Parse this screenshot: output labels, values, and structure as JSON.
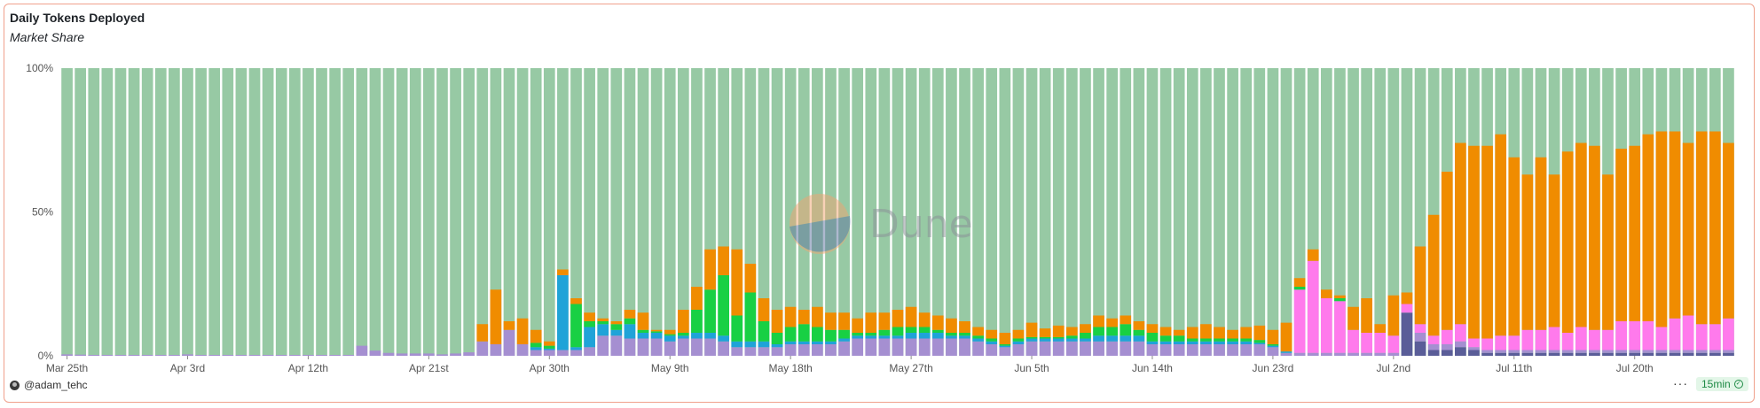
{
  "header": {
    "title": "Daily Tokens Deployed",
    "subtitle": "Market Share"
  },
  "footer": {
    "author": "@adam_tehc",
    "refresh": "15min",
    "more_icon": "ellipsis-icon",
    "refresh_icon": "check-circle-icon"
  },
  "watermark": {
    "text": "Dune"
  },
  "colors": {
    "background_series": "#97c9a4",
    "purple": "#a58fd1",
    "blue": "#1fa3d8",
    "green": "#18d044",
    "orange": "#f08c00",
    "pink": "#ff7aec",
    "navy": "#5a5d98"
  },
  "chart_data": {
    "type": "bar",
    "stacked": true,
    "normalized": true,
    "y_ticks": [
      "0%",
      "50%",
      "100%"
    ],
    "ylim": [
      0,
      100
    ],
    "grid": false,
    "legend": "none",
    "x_tick_labels": [
      {
        "label": "Mar 25th",
        "index": 0
      },
      {
        "label": "Apr 3rd",
        "index": 9
      },
      {
        "label": "Apr 12th",
        "index": 18
      },
      {
        "label": "Apr 21st",
        "index": 27
      },
      {
        "label": "Apr 30th",
        "index": 36
      },
      {
        "label": "May 9th",
        "index": 45
      },
      {
        "label": "May 18th",
        "index": 54
      },
      {
        "label": "May 27th",
        "index": 63
      },
      {
        "label": "Jun 5th",
        "index": 72
      },
      {
        "label": "Jun 14th",
        "index": 81
      },
      {
        "label": "Jun 23rd",
        "index": 90
      },
      {
        "label": "Jul 2nd",
        "index": 99
      },
      {
        "label": "Jul 11th",
        "index": 108
      },
      {
        "label": "Jul 20th",
        "index": 117
      }
    ],
    "stack_order": [
      "navy",
      "purple",
      "pink",
      "blue",
      "green",
      "orange"
    ],
    "days": [
      {
        "purple": 0.5
      },
      {
        "purple": 0.4
      },
      {
        "purple": 0.3
      },
      {
        "purple": 0.3
      },
      {
        "purple": 0.3
      },
      {
        "purple": 0.3
      },
      {
        "purple": 0.3
      },
      {
        "purple": 0.3
      },
      {
        "purple": 0.3
      },
      {
        "purple": 0.5
      },
      {
        "purple": 0.3
      },
      {
        "purple": 0.3
      },
      {
        "purple": 0.3
      },
      {
        "purple": 0.3
      },
      {
        "purple": 0.3
      },
      {
        "purple": 0.3
      },
      {
        "purple": 0.3
      },
      {
        "purple": 0.3
      },
      {
        "purple": 0.3
      },
      {
        "purple": 0.3
      },
      {
        "purple": 0.3
      },
      {
        "purple": 0.3
      },
      {
        "purple": 3.5
      },
      {
        "purple": 1.8
      },
      {
        "purple": 1.0
      },
      {
        "purple": 0.8
      },
      {
        "purple": 0.8
      },
      {
        "purple": 0.8
      },
      {
        "purple": 0.5
      },
      {
        "purple": 0.8
      },
      {
        "purple": 1.2
      },
      {
        "purple": 5,
        "orange": 6
      },
      {
        "purple": 4,
        "orange": 19
      },
      {
        "purple": 9,
        "orange": 3
      },
      {
        "purple": 4,
        "orange": 9
      },
      {
        "purple": 2,
        "blue": 1,
        "green": 1.5,
        "orange": 4.5
      },
      {
        "purple": 2,
        "blue": 0.5,
        "green": 1,
        "orange": 1.5
      },
      {
        "purple": 2,
        "blue": 26,
        "orange": 2
      },
      {
        "purple": 2,
        "blue": 1,
        "green": 15,
        "orange": 2
      },
      {
        "purple": 3,
        "blue": 7,
        "green": 2,
        "orange": 3
      },
      {
        "purple": 7,
        "blue": 4,
        "green": 1,
        "orange": 1
      },
      {
        "purple": 7,
        "blue": 2,
        "green": 2,
        "orange": 1
      },
      {
        "purple": 6,
        "blue": 5,
        "green": 2,
        "orange": 3
      },
      {
        "purple": 6,
        "blue": 2,
        "green": 1,
        "orange": 6
      },
      {
        "purple": 6,
        "blue": 2,
        "green": 0.5,
        "orange": 0.5
      },
      {
        "purple": 5,
        "blue": 2,
        "green": 0.5,
        "orange": 1.5
      },
      {
        "purple": 6,
        "blue": 1,
        "green": 1,
        "orange": 8
      },
      {
        "purple": 6,
        "blue": 2,
        "green": 8,
        "orange": 8
      },
      {
        "purple": 6,
        "blue": 2,
        "green": 15,
        "orange": 14
      },
      {
        "purple": 5,
        "blue": 2,
        "green": 21,
        "orange": 10
      },
      {
        "purple": 3,
        "blue": 2,
        "green": 9,
        "orange": 23
      },
      {
        "purple": 3,
        "blue": 2,
        "green": 17,
        "orange": 10
      },
      {
        "purple": 3,
        "blue": 2,
        "green": 7,
        "orange": 8
      },
      {
        "purple": 3,
        "blue": 1,
        "green": 4,
        "orange": 8
      },
      {
        "purple": 4,
        "blue": 1,
        "green": 5,
        "orange": 7
      },
      {
        "purple": 4,
        "blue": 1,
        "green": 6,
        "orange": 5
      },
      {
        "purple": 4,
        "blue": 1,
        "green": 5,
        "orange": 7
      },
      {
        "purple": 4,
        "blue": 1,
        "green": 4,
        "orange": 6
      },
      {
        "purple": 5,
        "blue": 1,
        "green": 3,
        "orange": 6
      },
      {
        "purple": 6,
        "blue": 1,
        "green": 1,
        "orange": 5
      },
      {
        "purple": 6,
        "blue": 1,
        "green": 1,
        "orange": 7
      },
      {
        "purple": 6,
        "blue": 1,
        "green": 2,
        "orange": 6
      },
      {
        "purple": 6,
        "blue": 1,
        "green": 3,
        "orange": 6
      },
      {
        "purple": 6,
        "blue": 2,
        "green": 2,
        "orange": 7
      },
      {
        "purple": 6,
        "blue": 2,
        "green": 2,
        "orange": 5
      },
      {
        "purple": 6,
        "blue": 2,
        "green": 1,
        "orange": 5
      },
      {
        "purple": 6,
        "blue": 1,
        "green": 1,
        "orange": 5
      },
      {
        "purple": 6,
        "blue": 1,
        "green": 1,
        "orange": 4
      },
      {
        "purple": 5,
        "blue": 1,
        "green": 1,
        "orange": 3
      },
      {
        "purple": 4,
        "blue": 1,
        "green": 1,
        "orange": 3
      },
      {
        "purple": 3,
        "blue": 0.5,
        "green": 0.5,
        "orange": 4
      },
      {
        "purple": 4,
        "blue": 1,
        "green": 1,
        "orange": 3
      },
      {
        "purple": 5,
        "blue": 1,
        "green": 0.5,
        "orange": 5
      },
      {
        "purple": 5,
        "blue": 1,
        "green": 0.5,
        "orange": 3
      },
      {
        "purple": 5,
        "blue": 1,
        "green": 0.5,
        "orange": 4
      },
      {
        "purple": 5,
        "blue": 1,
        "green": 1,
        "orange": 3
      },
      {
        "purple": 5,
        "blue": 1,
        "green": 2,
        "orange": 3
      },
      {
        "purple": 5,
        "blue": 2,
        "green": 3,
        "orange": 4
      },
      {
        "purple": 5,
        "blue": 2,
        "green": 3,
        "orange": 3
      },
      {
        "purple": 5,
        "blue": 2,
        "green": 4,
        "orange": 3
      },
      {
        "purple": 5,
        "blue": 2,
        "green": 2,
        "orange": 3
      },
      {
        "purple": 4,
        "blue": 1,
        "green": 3,
        "orange": 3
      },
      {
        "purple": 4,
        "blue": 1,
        "green": 2,
        "orange": 3
      },
      {
        "purple": 4,
        "blue": 1,
        "green": 2,
        "orange": 2
      },
      {
        "purple": 4,
        "blue": 1,
        "green": 1,
        "orange": 4
      },
      {
        "purple": 4,
        "blue": 1,
        "green": 1,
        "orange": 5
      },
      {
        "purple": 4,
        "blue": 1,
        "green": 1,
        "orange": 4
      },
      {
        "purple": 4,
        "blue": 1,
        "green": 1,
        "orange": 3
      },
      {
        "purple": 4,
        "blue": 1,
        "green": 1,
        "orange": 4
      },
      {
        "purple": 4,
        "blue": 0.5,
        "green": 1,
        "orange": 5
      },
      {
        "purple": 3,
        "blue": 0.5,
        "green": 0.5,
        "orange": 5
      },
      {
        "purple": 1,
        "blue": 0.5,
        "orange": 10
      },
      {
        "purple": 1,
        "pink": 22,
        "green": 1,
        "orange": 3
      },
      {
        "purple": 1,
        "pink": 32,
        "orange": 4
      },
      {
        "purple": 1,
        "pink": 19,
        "orange": 3
      },
      {
        "purple": 1,
        "pink": 18,
        "green": 1,
        "orange": 1
      },
      {
        "purple": 1,
        "pink": 8,
        "orange": 8
      },
      {
        "purple": 1,
        "pink": 7,
        "orange": 12
      },
      {
        "purple": 1,
        "pink": 7,
        "orange": 3
      },
      {
        "purple": 1,
        "pink": 6,
        "orange": 14
      },
      {
        "navy": 15,
        "pink": 3,
        "orange": 4
      },
      {
        "navy": 5,
        "purple": 3,
        "pink": 3,
        "orange": 27
      },
      {
        "navy": 2,
        "purple": 2,
        "pink": 3,
        "orange": 42
      },
      {
        "navy": 2,
        "purple": 2,
        "pink": 5,
        "orange": 55
      },
      {
        "navy": 3,
        "purple": 2,
        "pink": 6,
        "orange": 63
      },
      {
        "navy": 2,
        "purple": 1,
        "pink": 3,
        "orange": 67
      },
      {
        "navy": 1,
        "purple": 1,
        "pink": 4,
        "orange": 67
      },
      {
        "navy": 1,
        "purple": 1,
        "pink": 5,
        "orange": 70
      },
      {
        "navy": 1,
        "purple": 1,
        "pink": 5,
        "orange": 62
      },
      {
        "navy": 1,
        "purple": 1,
        "pink": 7,
        "orange": 54
      },
      {
        "navy": 1,
        "purple": 1,
        "pink": 7,
        "orange": 60
      },
      {
        "navy": 1,
        "purple": 1,
        "pink": 8,
        "orange": 53
      },
      {
        "navy": 1,
        "purple": 1,
        "pink": 6,
        "orange": 63
      },
      {
        "navy": 1,
        "purple": 1,
        "pink": 8,
        "orange": 64
      },
      {
        "navy": 1,
        "purple": 1,
        "pink": 7,
        "orange": 64
      },
      {
        "navy": 1,
        "purple": 1,
        "pink": 7,
        "orange": 54
      },
      {
        "navy": 1,
        "purple": 1,
        "pink": 10,
        "orange": 60
      },
      {
        "navy": 1,
        "purple": 1,
        "pink": 10,
        "orange": 61
      },
      {
        "navy": 1,
        "purple": 1,
        "pink": 10,
        "orange": 65
      },
      {
        "navy": 1,
        "purple": 1,
        "pink": 8,
        "orange": 68
      },
      {
        "navy": 1,
        "purple": 1,
        "pink": 11,
        "orange": 65
      },
      {
        "navy": 1,
        "purple": 1,
        "pink": 12,
        "orange": 60
      },
      {
        "navy": 1,
        "purple": 1,
        "pink": 9,
        "orange": 67
      },
      {
        "navy": 1,
        "purple": 1,
        "pink": 9,
        "orange": 67
      },
      {
        "navy": 1,
        "purple": 1,
        "pink": 11,
        "orange": 61
      }
    ]
  }
}
